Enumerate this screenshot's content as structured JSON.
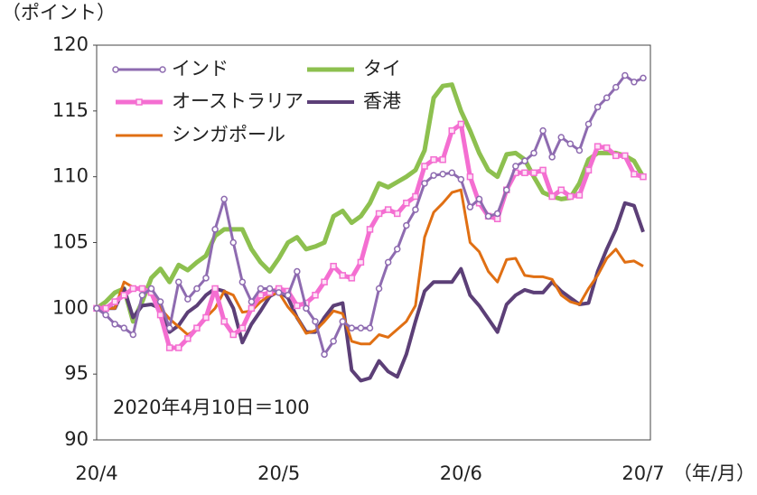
{
  "chart_data": {
    "type": "line",
    "y_unit_label": "（ポイント）",
    "x_unit_label": "（年/月）",
    "annotation": "2020年4月10日＝100",
    "categories": [
      "20/4",
      null,
      null,
      null,
      null,
      null,
      null,
      null,
      null,
      null,
      null,
      null,
      null,
      null,
      null,
      null,
      null,
      null,
      null,
      null,
      "20/5",
      null,
      null,
      null,
      null,
      null,
      null,
      null,
      null,
      null,
      null,
      null,
      null,
      null,
      null,
      null,
      null,
      null,
      null,
      null,
      "20/6",
      null,
      null,
      null,
      null,
      null,
      null,
      null,
      null,
      null,
      null,
      null,
      null,
      null,
      null,
      null,
      null,
      null,
      null,
      null,
      "20/7"
    ],
    "ylim": [
      90,
      120
    ],
    "yticks": [
      90,
      95,
      100,
      105,
      110,
      115,
      120
    ],
    "series": [
      {
        "name": "タイ",
        "color": "#8dc04f",
        "line_width": 5,
        "marker": null,
        "values": [
          100,
          100.5,
          101.2,
          101.5,
          99,
          100.5,
          102.3,
          103,
          102,
          103.3,
          102.9,
          103.5,
          104,
          105.5,
          106,
          106,
          106,
          104.5,
          103.5,
          102.8,
          103.8,
          105,
          105.4,
          104.5,
          104.7,
          105,
          107,
          107.4,
          106.5,
          107,
          108,
          109.5,
          109.2,
          109.6,
          110,
          110.5,
          112,
          116,
          116.9,
          117,
          115,
          113.5,
          111.8,
          110.5,
          110,
          111.7,
          111.8,
          111.3,
          110,
          108.8,
          108.5,
          108.3,
          108.4,
          109.5,
          111.3,
          111.8,
          111.8,
          111.8,
          111.6,
          111.2,
          110
        ]
      },
      {
        "name": "香港",
        "color": "#5c3f77",
        "line_width": 4,
        "marker": null,
        "values": [
          100,
          100,
          100,
          101.5,
          99.3,
          100.2,
          100.3,
          100,
          98.2,
          98.7,
          99.7,
          100.2,
          101,
          101.5,
          101.3,
          100,
          97.4,
          98.8,
          99.8,
          100.9,
          101.3,
          100.8,
          99.3,
          98.2,
          98.2,
          99.3,
          100.2,
          100.4,
          95.3,
          94.5,
          94.7,
          96,
          95.2,
          94.8,
          96.5,
          99,
          101.3,
          102,
          102,
          102,
          103,
          101,
          100.2,
          99.2,
          98.2,
          100.3,
          101,
          101.4,
          101.2,
          101.2,
          102,
          101.3,
          100.8,
          100.3,
          100.4,
          102.8,
          104.5,
          106,
          108,
          107.8,
          105.8
        ]
      },
      {
        "name": "シンガポール",
        "color": "#e06f13",
        "line_width": 3,
        "marker": null,
        "values": [
          100,
          100,
          100,
          102,
          101.6,
          101.5,
          101.2,
          100,
          99.2,
          98.6,
          98,
          98.4,
          99.3,
          100,
          101.3,
          101,
          99.7,
          99.8,
          100.5,
          101,
          101.2,
          100.1,
          99.3,
          98.1,
          98.3,
          99,
          99.8,
          99.6,
          97.5,
          97.3,
          97.3,
          98,
          97.8,
          98.4,
          99,
          100.2,
          105.4,
          107.3,
          108,
          108.8,
          109,
          105,
          104.3,
          102.8,
          102,
          103.7,
          103.8,
          102.5,
          102.4,
          102.4,
          102.2,
          101,
          100.5,
          100.3,
          101.5,
          102.5,
          103.8,
          104.5,
          103.5,
          103.6,
          103.2
        ]
      },
      {
        "name": "オーストラリア",
        "color": "#f46ed1",
        "line_width": 5,
        "marker": "square",
        "values": [
          100,
          100,
          100.5,
          101,
          101.5,
          101.5,
          101.2,
          99.5,
          97,
          97,
          97.7,
          98.5,
          99.3,
          101.5,
          99,
          98,
          98.5,
          100,
          101,
          101.2,
          101.5,
          101.3,
          100.2,
          100.4,
          101,
          102,
          103.2,
          102.5,
          102.3,
          103.5,
          106,
          107.2,
          107.5,
          107.2,
          108,
          108.5,
          110.8,
          111.3,
          111.3,
          113.5,
          114,
          110,
          108,
          107,
          106.8,
          109,
          110.3,
          110.3,
          110.3,
          110.5,
          108.5,
          109,
          108.5,
          108.6,
          110.5,
          112.3,
          112.2,
          111.6,
          111.6,
          110.2,
          110
        ]
      },
      {
        "name": "インド",
        "color": "#8e6bb0",
        "line_width": 3,
        "marker": "circle",
        "values": [
          100,
          99.5,
          98.8,
          98.5,
          98,
          101,
          101.5,
          100.5,
          98.5,
          102,
          100.7,
          101.5,
          102.3,
          106,
          108.3,
          105,
          102,
          100.5,
          101.5,
          101.5,
          101.2,
          101,
          102.8,
          100,
          99,
          96.5,
          97.5,
          99,
          98.5,
          98.5,
          98.5,
          101.5,
          103.5,
          104.5,
          106.3,
          107.5,
          109.5,
          110.1,
          110.2,
          110.3,
          109.8,
          107.7,
          108.3,
          107,
          107.2,
          109,
          110.8,
          111.2,
          111.8,
          113.5,
          111.5,
          113,
          112.5,
          112,
          114,
          115.3,
          116,
          116.8,
          117.7,
          117.2,
          117.5
        ]
      }
    ],
    "legend_order": [
      4,
      0,
      3,
      1,
      2
    ]
  }
}
